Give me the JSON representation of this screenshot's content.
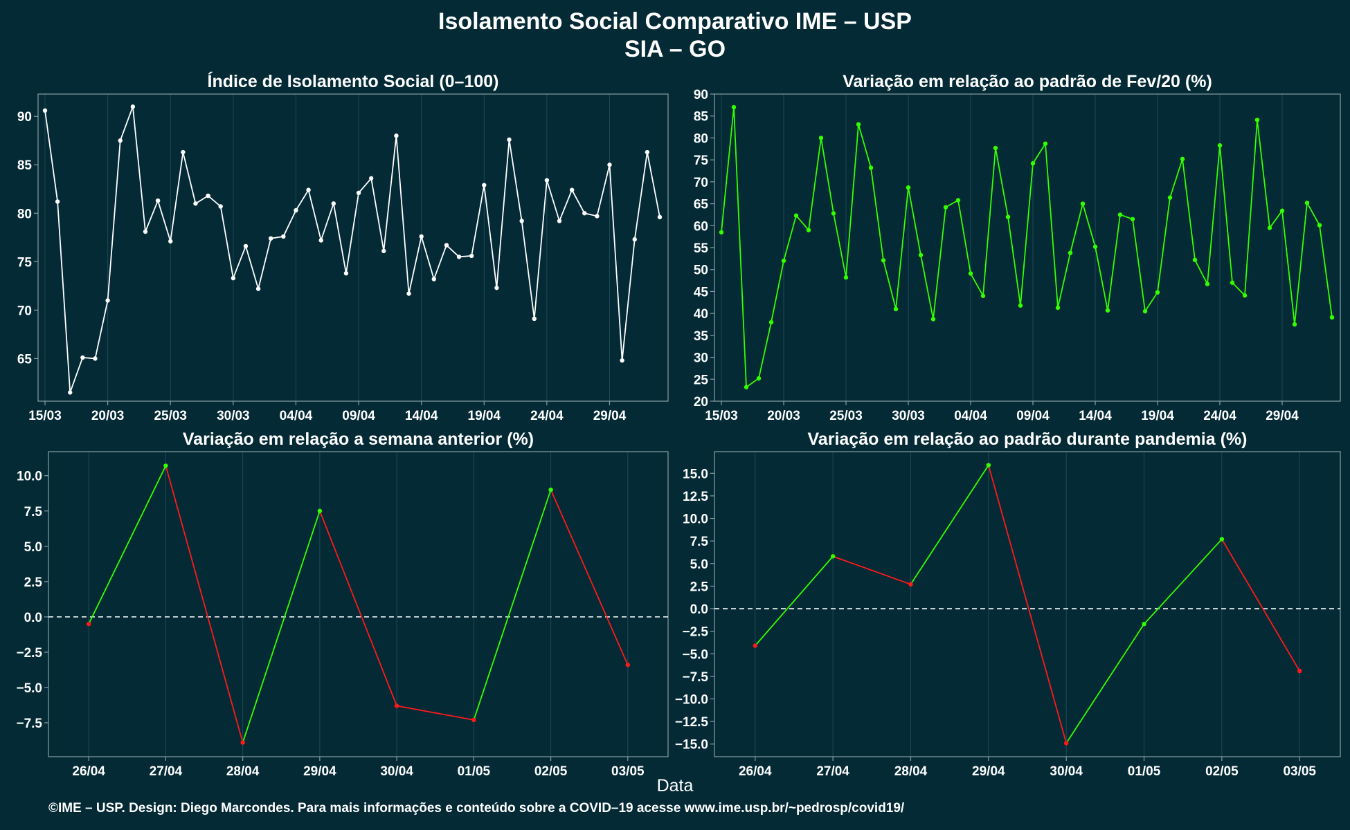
{
  "title": "Isolamento Social Comparativo IME – USP",
  "subtitle": "SIA – GO",
  "xlabel": "Data",
  "caption": "©IME – USP. Design: Diego Marcondes. Para mais informações e conteúdo sobre a COVID–19 acesse www.ime.usp.br/~pedrosp/covid19/",
  "colors": {
    "background": "#032a35",
    "white_line": "#ffffff",
    "green": "#33ff00",
    "red": "#ff1a1a",
    "grid": "#1f4a57",
    "frame": "#8a9ea5"
  },
  "chart_data": [
    {
      "id": "isolation-index",
      "type": "line",
      "title": "Índice de Isolamento Social (0–100)",
      "series": [
        {
          "color": "#ffffff",
          "values": [
            90.6,
            81.2,
            61.5,
            65.1,
            65.0,
            71.0,
            87.5,
            91.0,
            78.1,
            81.3,
            77.1,
            86.3,
            81.0,
            81.8,
            80.7,
            73.3,
            76.6,
            72.2,
            77.4,
            77.6,
            80.3,
            82.4,
            77.2,
            81.0,
            73.8,
            82.1,
            83.6,
            76.1,
            88.0,
            71.7,
            77.6,
            73.2,
            76.7,
            75.5,
            75.6,
            82.9,
            72.3,
            87.6,
            79.2,
            69.1,
            83.4,
            79.2,
            82.4,
            80.0,
            79.7,
            85.0,
            64.8,
            77.3,
            86.3,
            79.6
          ]
        }
      ],
      "xticks": [
        "15/03",
        "20/03",
        "25/03",
        "30/03",
        "04/04",
        "09/04",
        "14/04",
        "19/04",
        "24/04",
        "29/04"
      ],
      "tick_step": 5,
      "yticks": [
        65,
        70,
        75,
        80,
        85,
        90
      ],
      "ylim": [
        60.6,
        92.3
      ]
    },
    {
      "id": "variation-feb",
      "type": "line",
      "title": "Variação em relação ao padrão de Fev/20 (%)",
      "series": [
        {
          "color": "#33ff00",
          "values": [
            58.5,
            87.0,
            23.2,
            25.2,
            38.0,
            52.0,
            62.3,
            59.0,
            80.0,
            62.8,
            48.2,
            83.1,
            73.2,
            52.1,
            41.0,
            68.7,
            53.3,
            38.7,
            64.2,
            65.8,
            49.1,
            44.0,
            77.7,
            62.0,
            41.8,
            74.2,
            78.7,
            41.3,
            53.8,
            65.0,
            55.2,
            40.7,
            62.5,
            61.5,
            40.5,
            44.8,
            66.4,
            75.2,
            52.2,
            46.7,
            78.3,
            47.0,
            44.1,
            84.1,
            59.5,
            63.4,
            37.5,
            65.2,
            60.1,
            39.1
          ]
        }
      ],
      "xticks": [
        "15/03",
        "20/03",
        "25/03",
        "30/03",
        "04/04",
        "09/04",
        "14/04",
        "19/04",
        "24/04",
        "29/04"
      ],
      "tick_step": 5,
      "yticks": [
        20,
        25,
        30,
        35,
        40,
        45,
        50,
        55,
        60,
        65,
        70,
        75,
        80,
        85,
        90
      ],
      "ylim": [
        20,
        90
      ]
    },
    {
      "id": "variation-week",
      "type": "line",
      "title": "Variação em relação a semana anterior (%)",
      "categories": [
        "26/04",
        "27/04",
        "28/04",
        "29/04",
        "30/04",
        "01/05",
        "02/05",
        "03/05"
      ],
      "values": [
        -0.5,
        10.7,
        -8.9,
        7.5,
        -6.3,
        -7.3,
        9.0,
        -3.4
      ],
      "yticks": [
        -7.5,
        -5.0,
        -2.5,
        0.0,
        2.5,
        5.0,
        7.5,
        10.0
      ],
      "ylim": [
        -9.9,
        11.7
      ],
      "reference_line": 0
    },
    {
      "id": "variation-pandemic",
      "type": "line",
      "title": "Variação em relação ao padrão durante pandemia (%)",
      "categories": [
        "26/04",
        "27/04",
        "28/04",
        "29/04",
        "30/04",
        "01/05",
        "02/05",
        "03/05"
      ],
      "values": [
        -4.1,
        5.8,
        2.7,
        15.9,
        -14.9,
        -1.7,
        7.7,
        -6.9
      ],
      "yticks": [
        -15.0,
        -12.5,
        -10.0,
        -7.5,
        -5.0,
        -2.5,
        0.0,
        2.5,
        5.0,
        7.5,
        10.0,
        12.5,
        15.0
      ],
      "ylim": [
        -16.4,
        17.4
      ],
      "reference_line": 0
    }
  ]
}
